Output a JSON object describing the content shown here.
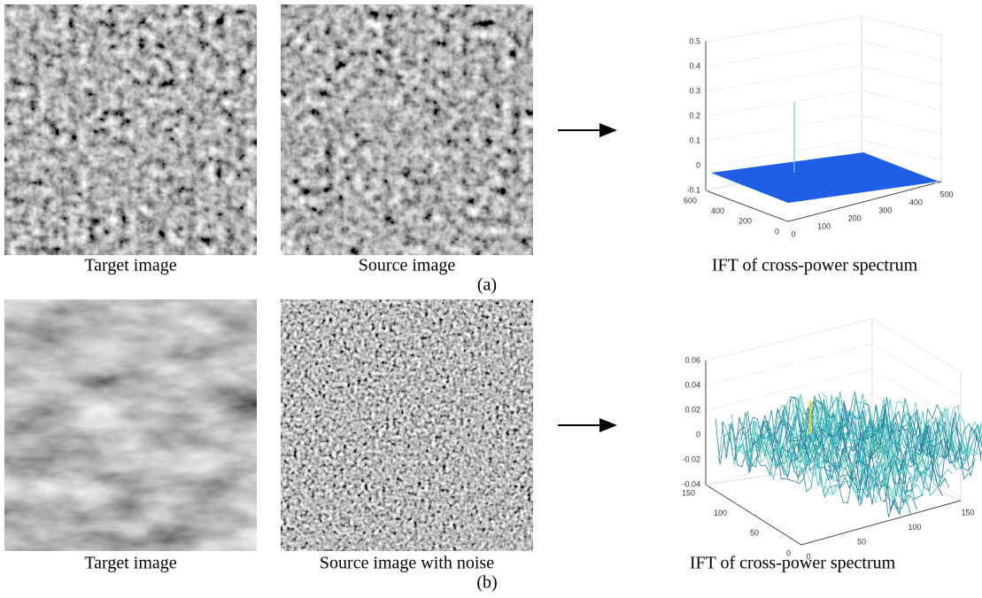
{
  "panels": [
    {
      "label": "(a)",
      "images": [
        {
          "caption": "Target image"
        },
        {
          "caption": "Source image"
        }
      ],
      "plot": {
        "caption": "IFT of cross-power spectrum",
        "zticks": [
          0.5,
          0.4,
          0.3,
          0.2,
          0.1,
          0,
          -0.1
        ],
        "yticks": [
          600,
          400,
          200,
          0
        ],
        "xticks": [
          0,
          100,
          200,
          300,
          400,
          500
        ]
      }
    },
    {
      "label": "(b)",
      "images": [
        {
          "caption": "Target image"
        },
        {
          "caption": "Source image with noise"
        }
      ],
      "plot": {
        "caption": "IFT of cross-power spectrum",
        "zticks": [
          0.06,
          0.04,
          0.02,
          0,
          -0.02,
          -0.04
        ],
        "yticks": [
          150,
          100,
          50,
          0
        ],
        "xticks": [
          0,
          50,
          100,
          150
        ]
      }
    }
  ]
}
